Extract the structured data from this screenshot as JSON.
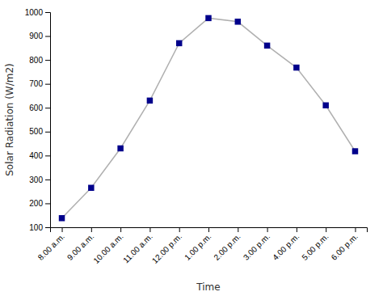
{
  "chart_data": {
    "type": "line",
    "categories": [
      "8.00 a.m.",
      "9.00 a.m.",
      "10.00 a.m.",
      "11.00 a.m.",
      "12.00 p.m.",
      "1.00 p.m.",
      "2.00 p.m.",
      "3.00 p.m.",
      "4.00 p.m.",
      "5.00 p.m.",
      "6.00 p.m."
    ],
    "values": [
      138,
      265,
      430,
      630,
      870,
      975,
      960,
      860,
      768,
      610,
      418
    ],
    "xlabel": "Time",
    "ylabel": "Solar Radiation (W/m2)",
    "ylim": [
      100,
      1000
    ],
    "yticks": [
      100,
      200,
      300,
      400,
      500,
      600,
      700,
      800,
      900,
      1000
    ],
    "color": "#b0b0b0",
    "colors": [
      "#00008B",
      "#00008B",
      "#00008B",
      "#00008B",
      "#00008B",
      "#00008B",
      "#00008B",
      "#00008B",
      "#00008B",
      "#00008B",
      "#00008B"
    ],
    "marker": "square",
    "grid": false
  }
}
